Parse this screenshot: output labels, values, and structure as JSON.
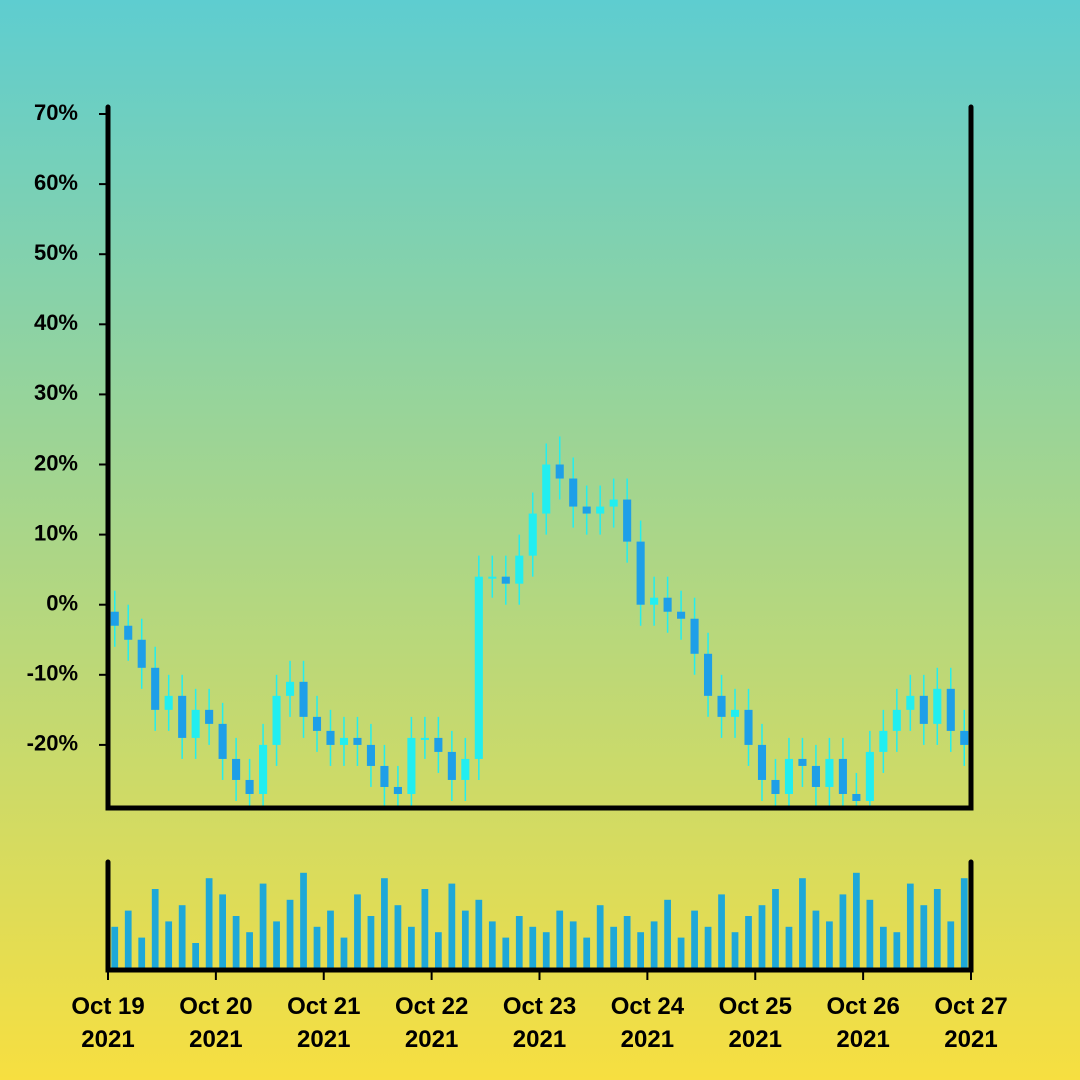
{
  "chart_data": {
    "type": "candlestick",
    "ylim": [
      -29,
      71
    ],
    "yticks": [
      {
        "value": 70,
        "label": "70%"
      },
      {
        "value": 60,
        "label": "60%"
      },
      {
        "value": 50,
        "label": "50%"
      },
      {
        "value": 40,
        "label": "40%"
      },
      {
        "value": 30,
        "label": "30%"
      },
      {
        "value": 20,
        "label": "20%"
      },
      {
        "value": 10,
        "label": "10%"
      },
      {
        "value": 0,
        "label": "0%"
      },
      {
        "value": -10,
        "label": "-10%"
      },
      {
        "value": -20,
        "label": "-20%"
      }
    ],
    "xlim": [
      "2021-10-19",
      "2021-10-27"
    ],
    "xticks": [
      {
        "value": "2021-10-19",
        "label": "Oct 19 2021"
      },
      {
        "value": "2021-10-20",
        "label": "Oct 20 2021"
      },
      {
        "value": "2021-10-21",
        "label": "Oct 21 2021"
      },
      {
        "value": "2021-10-22",
        "label": "Oct 22 2021"
      },
      {
        "value": "2021-10-23",
        "label": "Oct 23 2021"
      },
      {
        "value": "2021-10-24",
        "label": "Oct 24 2021"
      },
      {
        "value": "2021-10-25",
        "label": "Oct 25 2021"
      },
      {
        "value": "2021-10-26",
        "label": "Oct 26 2021"
      },
      {
        "value": "2021-10-27",
        "label": "Oct 27 2021"
      }
    ],
    "open": [
      -1,
      -3,
      -5,
      -9,
      -15,
      -13,
      -19,
      -15,
      -17,
      -22,
      -25,
      -27,
      -20,
      -13,
      -11,
      -16,
      -18,
      -20,
      -19,
      -20,
      -23,
      -26,
      -27,
      -19,
      -19,
      -21,
      -25,
      -22,
      4,
      4,
      3,
      7,
      13,
      20,
      18,
      14,
      13,
      14,
      15,
      9,
      0,
      1,
      -1,
      -2,
      -7,
      -13,
      -16,
      -15,
      -20,
      -25,
      -27,
      -22,
      -23,
      -26,
      -22,
      -27,
      -28,
      -21,
      -18,
      -15,
      -13,
      -17,
      -12,
      -18
    ],
    "high": [
      2,
      0,
      -2,
      -6,
      -10,
      -10,
      -12,
      -12,
      -14,
      -19,
      -22,
      -17,
      -10,
      -8,
      -8,
      -13,
      -15,
      -16,
      -16,
      -17,
      -20,
      -23,
      -16,
      -16,
      -16,
      -18,
      -19,
      7,
      7,
      7,
      10,
      16,
      23,
      24,
      21,
      17,
      17,
      18,
      18,
      12,
      4,
      4,
      2,
      1,
      -4,
      -10,
      -12,
      -12,
      -17,
      -22,
      -19,
      -19,
      -20,
      -19,
      -19,
      -24,
      -18,
      -15,
      -12,
      -10,
      -10,
      -9,
      -9,
      -15
    ],
    "low": [
      -6,
      -8,
      -12,
      -18,
      -18,
      -22,
      -22,
      -20,
      -25,
      -28,
      -30,
      -30,
      -23,
      -16,
      -19,
      -21,
      -23,
      -23,
      -23,
      -26,
      -29,
      -30,
      -30,
      -22,
      -24,
      -28,
      -28,
      -25,
      1,
      0,
      0,
      4,
      10,
      15,
      11,
      10,
      10,
      11,
      6,
      -3,
      -3,
      -4,
      -5,
      -10,
      -16,
      -19,
      -19,
      -23,
      -28,
      -30,
      -30,
      -26,
      -29,
      -29,
      -30,
      -31,
      -31,
      -24,
      -21,
      -18,
      -20,
      -20,
      -21,
      -23
    ],
    "close": [
      -3,
      -5,
      -9,
      -15,
      -13,
      -19,
      -15,
      -17,
      -22,
      -25,
      -27,
      -20,
      -13,
      -11,
      -16,
      -18,
      -20,
      -19,
      -20,
      -23,
      -26,
      -27,
      -19,
      -19,
      -21,
      -25,
      -22,
      4,
      4,
      3,
      7,
      13,
      20,
      18,
      14,
      13,
      14,
      15,
      9,
      0,
      1,
      -1,
      -2,
      -7,
      -13,
      -16,
      -15,
      -20,
      -25,
      -27,
      -22,
      -23,
      -26,
      -22,
      -27,
      -28,
      -21,
      -18,
      -15,
      -13,
      -17,
      -12,
      -18,
      -20
    ],
    "volume": [
      40,
      55,
      30,
      75,
      45,
      60,
      25,
      85,
      70,
      50,
      35,
      80,
      45,
      65,
      90,
      40,
      55,
      30,
      70,
      50,
      85,
      60,
      40,
      75,
      35,
      80,
      55,
      65,
      45,
      30,
      50,
      40,
      35,
      55,
      45,
      30,
      60,
      40,
      50,
      35,
      45,
      65,
      30,
      55,
      40,
      70,
      35,
      50,
      60,
      75,
      40,
      85,
      55,
      45,
      70,
      90,
      65,
      40,
      35,
      80,
      60,
      75,
      45,
      85
    ],
    "volume_ylim": [
      0,
      100
    ],
    "up_color": "#22eef0",
    "down_color": "#1e9fe8",
    "volume_color": "#1ea8d8"
  }
}
